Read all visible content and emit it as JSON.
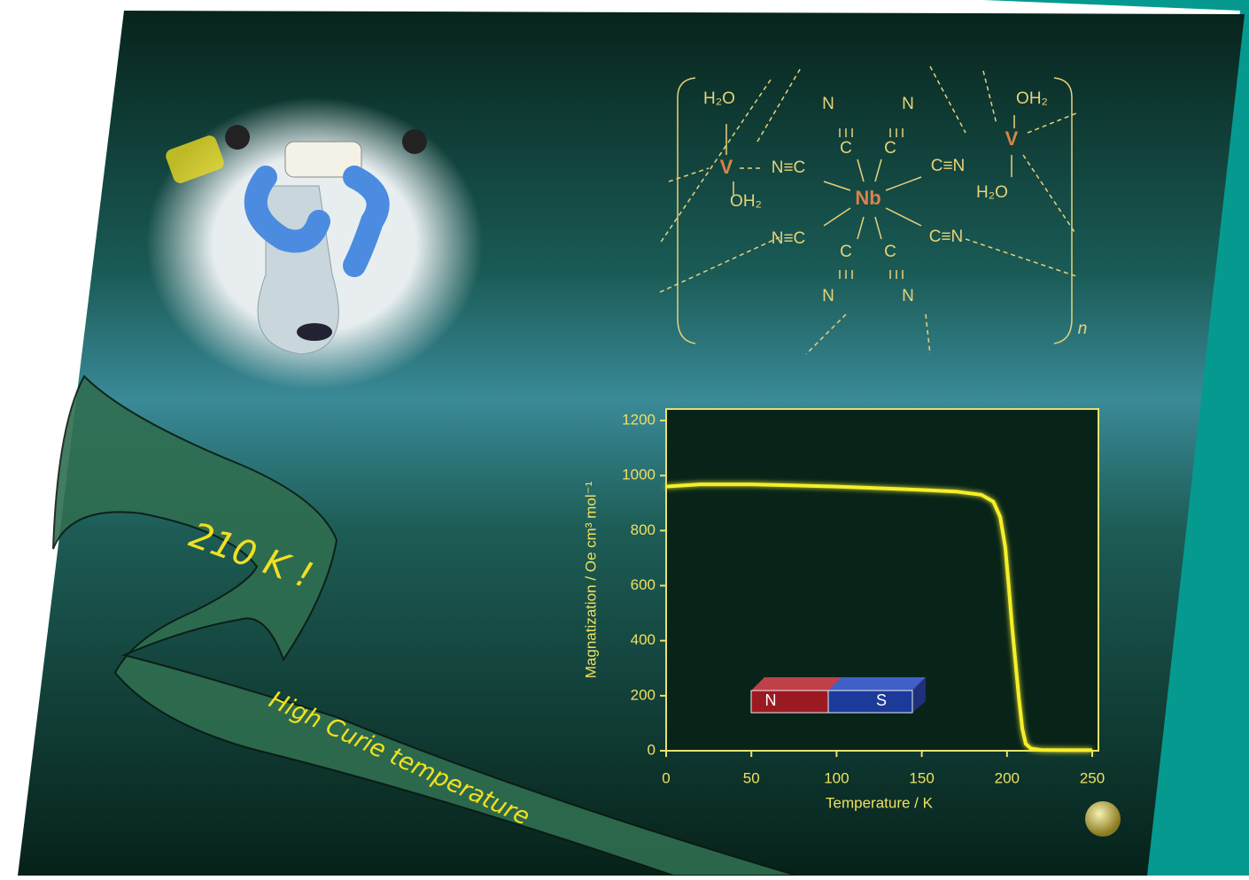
{
  "cover": {
    "exclamation": "210 K !",
    "ribbon_text": "High Curie temperature"
  },
  "structure": {
    "labels": [
      "H₂O",
      "V",
      "OH₂",
      "N≡C",
      "N",
      "C",
      "N",
      "C",
      "Nb",
      "C≡N",
      "V",
      "OH₂",
      "H₂O",
      "N≡C",
      "C≡N",
      "C",
      "N",
      "C",
      "N",
      "n"
    ]
  },
  "magnet": {
    "north": "N",
    "south": "S"
  },
  "chart_data": {
    "type": "line",
    "x_label": "Temperature / K",
    "y_label": "Magnatization / Oe cm³ mol⁻¹",
    "x": [
      0,
      20,
      50,
      100,
      150,
      170,
      185,
      192,
      196,
      199,
      201,
      203,
      205,
      207,
      209,
      211,
      214,
      220,
      235,
      250
    ],
    "values": [
      960,
      968,
      968,
      960,
      948,
      942,
      930,
      905,
      850,
      740,
      600,
      450,
      320,
      190,
      80,
      25,
      8,
      3,
      2,
      2
    ],
    "color": "#f5ef2a",
    "xlim": [
      0,
      250
    ],
    "ylim": [
      0,
      1200
    ],
    "xticks": [
      0,
      50,
      100,
      150,
      200,
      250
    ],
    "yticks": [
      0,
      200,
      400,
      600,
      800,
      1000,
      1200
    ]
  }
}
